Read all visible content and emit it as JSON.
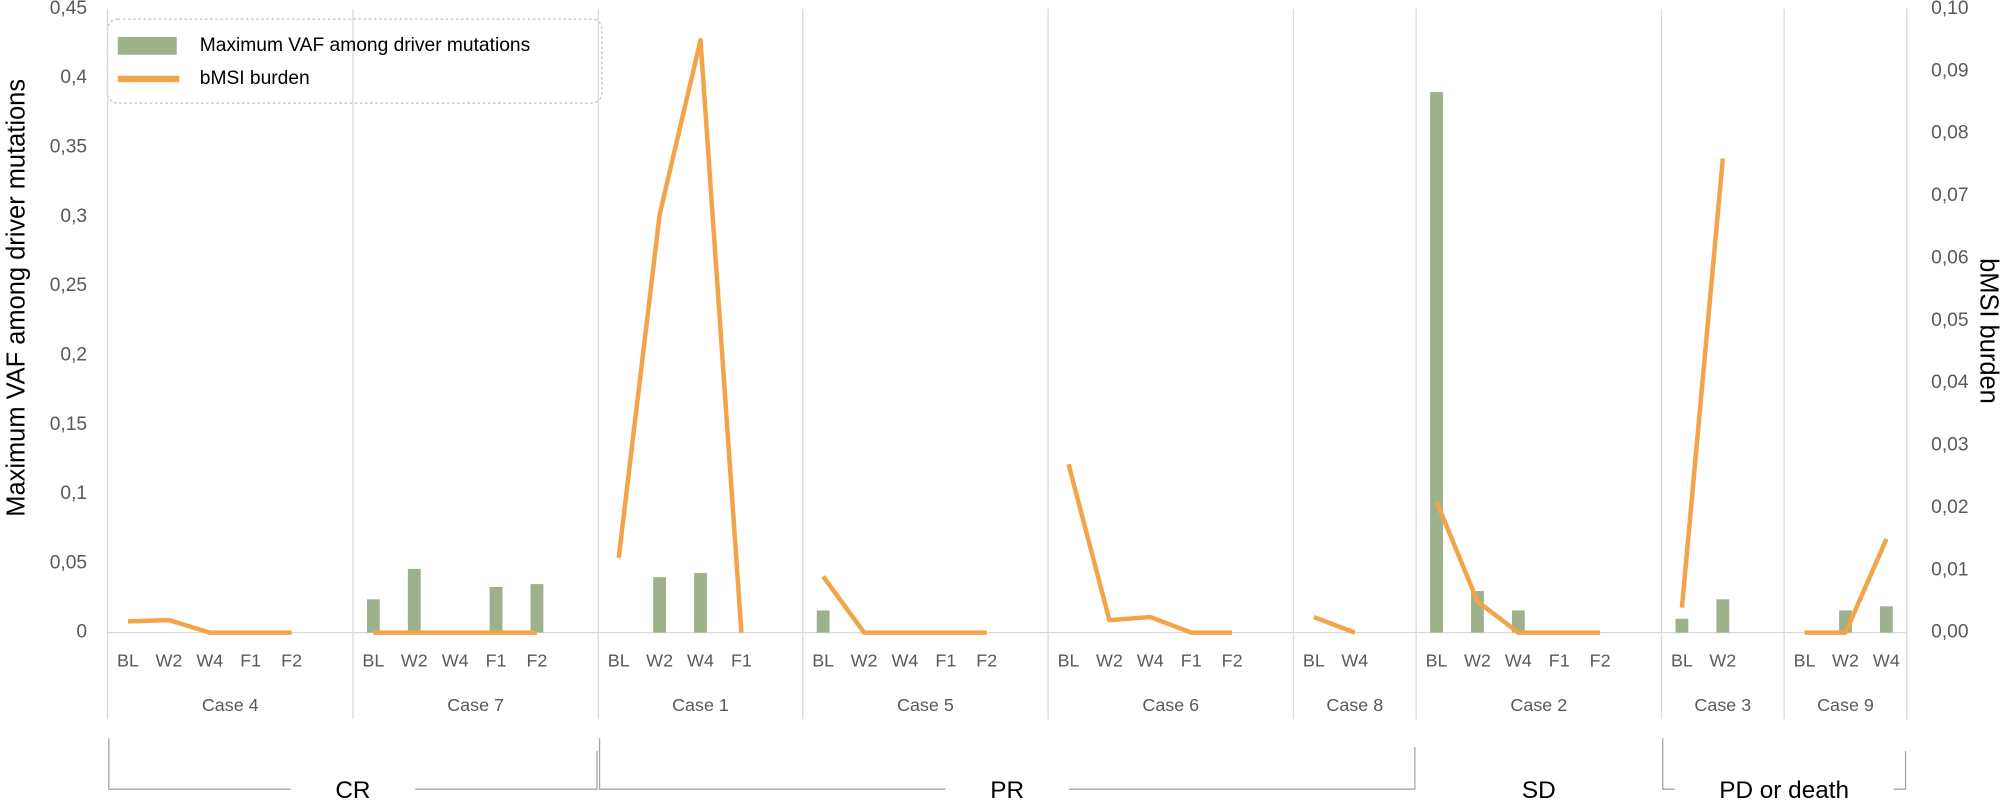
{
  "chart_data": {
    "type": "bar-line",
    "y_label": "Maximum VAF among driver mutations",
    "y2_label": "bMSI burden",
    "categories": [
      "BL",
      "W2",
      "W4",
      "F1",
      "F2",
      null,
      "BL",
      "W2",
      "W4",
      "F1",
      "F2",
      null,
      "BL",
      "W2",
      "W4",
      "F1",
      null,
      "BL",
      "W2",
      "W4",
      "F1",
      "F2",
      null,
      "BL",
      "W2",
      "W4",
      "F1",
      "F2",
      null,
      "BL",
      "W4",
      null,
      "BL",
      "W2",
      "W4",
      "F1",
      "F2",
      null,
      "BL",
      "W2",
      null,
      "BL",
      "W2",
      "W4"
    ],
    "cases": [
      "Case 4",
      "Case 7",
      "Case 1",
      "Case 5",
      "Case 6",
      "Case 8",
      "Case 2",
      "Case 3",
      "Case 9"
    ],
    "outcome_groups": [
      {
        "label": "CR",
        "cases": 2
      },
      {
        "label": "PR",
        "cases": 4
      },
      {
        "label": "SD",
        "cases": 1
      },
      {
        "label": "PD or death",
        "cases": 2
      }
    ],
    "series": [
      {
        "name": "Maximum VAF among driver mutations",
        "kind": "bar",
        "color": "#9db28a",
        "values": [
          0,
          0,
          0,
          0,
          0,
          null,
          0.024,
          0.046,
          0,
          0.033,
          0.035,
          null,
          0,
          0.04,
          0.043,
          0,
          null,
          0.016,
          0,
          0,
          0,
          0,
          null,
          0,
          0,
          0,
          0,
          0,
          null,
          0,
          0,
          null,
          0.39,
          0.03,
          0.016,
          0,
          0,
          null,
          0.01,
          0.024,
          null,
          0,
          0.016,
          0.019
        ]
      },
      {
        "name": "bMSI burden",
        "kind": "line",
        "axis": "y2",
        "color": "#f3a448",
        "values": [
          0.0018,
          0.002,
          0,
          0,
          0,
          null,
          0,
          0,
          0,
          0,
          0,
          null,
          0.012,
          0.067,
          0.095,
          0,
          null,
          0.009,
          0,
          0,
          0,
          0,
          null,
          0.027,
          0.002,
          0.0025,
          0,
          0,
          null,
          0.0025,
          0,
          null,
          0.021,
          0.005,
          0,
          0,
          0,
          null,
          0.004,
          0.076,
          null,
          0,
          0,
          0.015
        ]
      }
    ],
    "ylim": [
      0,
      0.45
    ],
    "yticks": [
      0,
      {
        "value": 0.05,
        "label": "0,05"
      },
      {
        "value": 0.1,
        "label": "0,1"
      },
      {
        "value": 0.15,
        "label": "0,15"
      },
      {
        "value": 0.2,
        "label": "0,2"
      },
      {
        "value": 0.25,
        "label": "0,25"
      },
      {
        "value": 0.3,
        "label": "0,3"
      },
      {
        "value": 0.35,
        "label": "0,35"
      },
      {
        "value": 0.4,
        "label": "0,4"
      },
      {
        "value": 0.45,
        "label": "0,45"
      }
    ],
    "y2lim": [
      0,
      0.1
    ],
    "y2ticks": [
      {
        "value": 0,
        "label": "0,00"
      },
      {
        "value": 0.01,
        "label": "0,01"
      },
      {
        "value": 0.02,
        "label": "0,02"
      },
      {
        "value": 0.03,
        "label": "0,03"
      },
      {
        "value": 0.04,
        "label": "0,04"
      },
      {
        "value": 0.05,
        "label": "0,05"
      },
      {
        "value": 0.06,
        "label": "0,06"
      },
      {
        "value": 0.07,
        "label": "0,07"
      },
      {
        "value": 0.08,
        "label": "0,08"
      },
      {
        "value": 0.09,
        "label": "0,09"
      },
      {
        "value": 0.1,
        "label": "0,10"
      }
    ],
    "legend": "top-left"
  }
}
